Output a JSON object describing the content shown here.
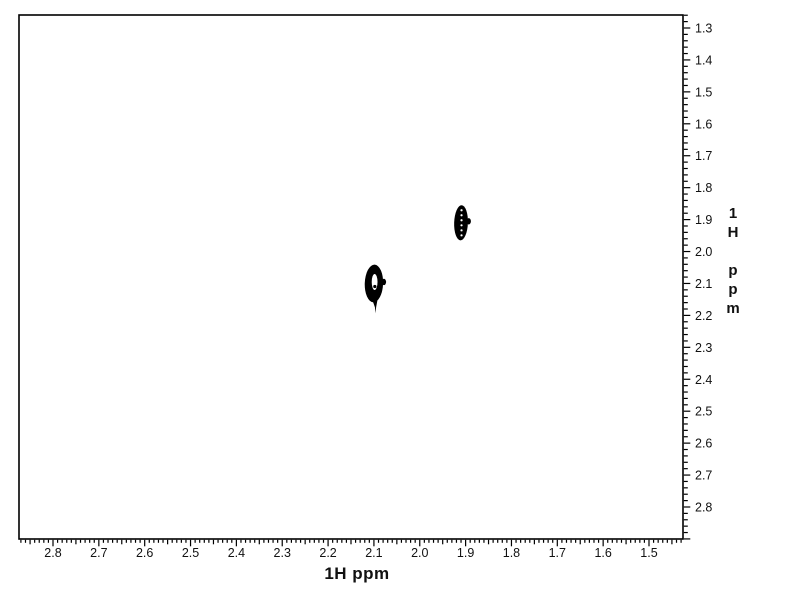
{
  "figure": {
    "background": "#ffffff",
    "frame_color": "#000000",
    "tick_color": "#000000",
    "text_color": "#111111"
  },
  "axes": {
    "x": {
      "title": "1H ppm",
      "tick_labels": [
        "2.8",
        "2.7",
        "2.6",
        "2.5",
        "2.4",
        "2.3",
        "2.2",
        "2.1",
        "2.0",
        "1.9",
        "1.8",
        "1.7",
        "1.6",
        "1.5"
      ]
    },
    "y": {
      "title": "1H ppm",
      "tick_labels": [
        "1.3",
        "1.4",
        "1.5",
        "1.6",
        "1.7",
        "1.8",
        "1.9",
        "2.0",
        "2.1",
        "2.2",
        "2.3",
        "2.4",
        "2.5",
        "2.6",
        "2.7",
        "2.8"
      ]
    }
  },
  "chart_data": {
    "type": "scatter",
    "subtype": "2d-nmr-contour",
    "title": "",
    "xlabel": "1H ppm",
    "ylabel": "1H ppm",
    "x_axis": {
      "range": [
        2.87,
        1.43
      ],
      "direction": "decreasing-right",
      "major_step": 0.1,
      "medium_step": 0.05,
      "minor_step": 0.01,
      "major_ticks": [
        2.8,
        2.7,
        2.6,
        2.5,
        2.4,
        2.3,
        2.2,
        2.1,
        2.0,
        1.9,
        1.8,
        1.7,
        1.6,
        1.5
      ]
    },
    "y_axis": {
      "range": [
        1.26,
        2.9
      ],
      "direction": "increasing-down",
      "major_step": 0.1,
      "minor_step": 0.02,
      "major_ticks": [
        1.3,
        1.4,
        1.5,
        1.6,
        1.7,
        1.8,
        1.9,
        2.0,
        2.1,
        2.2,
        2.3,
        2.4,
        2.5,
        2.6,
        2.7,
        2.8
      ]
    },
    "peaks": [
      {
        "name": "cross-peak-1.91",
        "x_ppm": 1.91,
        "y_ppm": 1.91,
        "x_extent_ppm": 0.03,
        "y_extent_ppm": 0.11,
        "style": "filled-speckled"
      },
      {
        "name": "cross-peak-2.10",
        "x_ppm": 2.1,
        "y_ppm": 2.1,
        "x_extent_ppm": 0.04,
        "y_extent_ppm": 0.118,
        "style": "ring-filled-tail"
      }
    ],
    "grid": false,
    "legend": null
  }
}
